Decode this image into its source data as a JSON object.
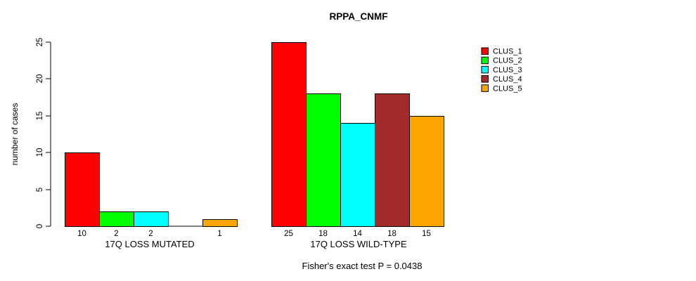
{
  "chart_data": {
    "type": "bar",
    "title": "RPPA_CNMF",
    "ylabel": "number of cases",
    "xlabel": "",
    "ylim": [
      0,
      25
    ],
    "yticks": [
      0,
      5,
      10,
      15,
      20,
      25
    ],
    "grid": false,
    "legend_position": "right",
    "series": [
      {
        "name": "CLUS_1",
        "color": "#FF0000"
      },
      {
        "name": "CLUS_2",
        "color": "#00FF00"
      },
      {
        "name": "CLUS_3",
        "color": "#00FFFF"
      },
      {
        "name": "CLUS_4",
        "color": "#A52A2A"
      },
      {
        "name": "CLUS_5",
        "color": "#FFA500"
      }
    ],
    "groups": [
      {
        "label": "17Q LOSS MUTATED",
        "values": [
          10,
          2,
          2,
          0,
          1
        ],
        "bar_labels": [
          "10",
          "2",
          "2",
          "",
          "1"
        ]
      },
      {
        "label": "17Q LOSS WILD-TYPE",
        "values": [
          25,
          18,
          14,
          18,
          15
        ],
        "bar_labels": [
          "25",
          "18",
          "14",
          "18",
          "15"
        ]
      }
    ],
    "footnote": "Fisher's exact test P = 0.0438",
    "colors": {
      "background": "#FFFFFF",
      "axis": "#000000",
      "bar_outline": "#000000",
      "text": "#000000"
    }
  }
}
